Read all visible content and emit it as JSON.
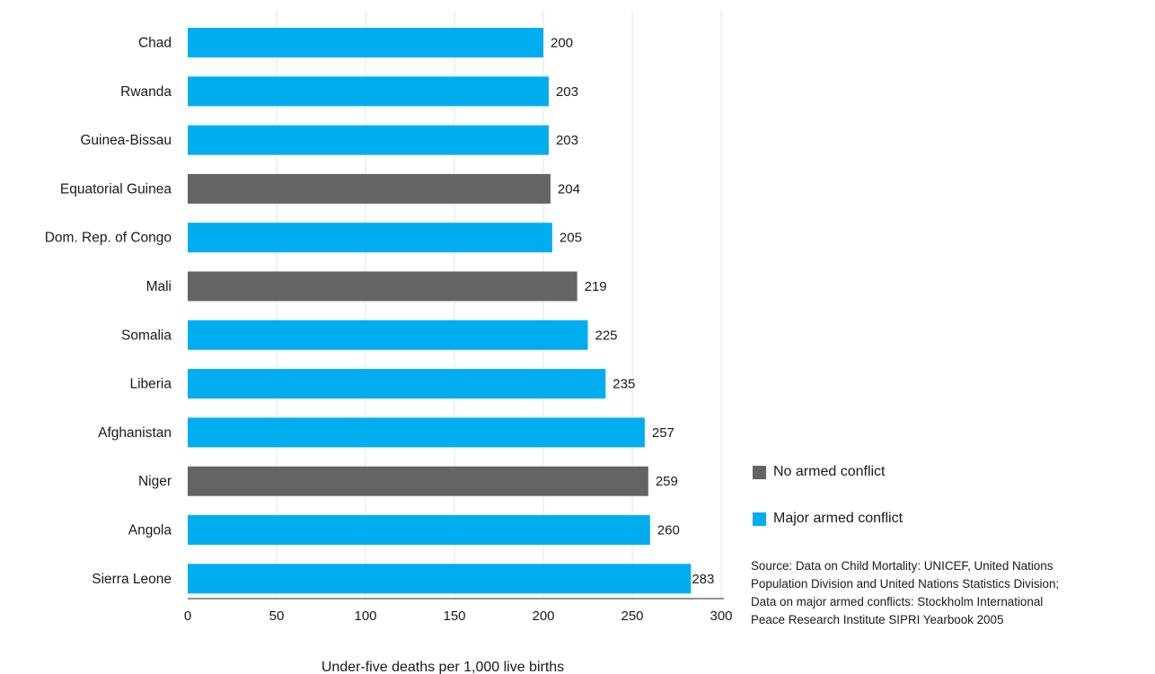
{
  "colors": {
    "major_armed_conflict": "#00aeef",
    "no_armed_conflict": "#636466",
    "grid": "#e6e6e6",
    "axis": "#555555"
  },
  "chart_data": {
    "type": "bar",
    "orientation": "horizontal",
    "categories": [
      "Chad",
      "Rwanda",
      "Guinea-Bissau",
      "Equatorial Guinea",
      "Dom. Rep. of Congo",
      "Mali",
      "Somalia",
      "Liberia",
      "Afghanistan",
      "Niger",
      "Angola",
      "Sierra Leone"
    ],
    "values": [
      200,
      203,
      203,
      204,
      205,
      219,
      225,
      235,
      257,
      259,
      260,
      283
    ],
    "groups": [
      "Major armed conflict",
      "Major armed conflict",
      "Major armed conflict",
      "No armed conflict",
      "Major armed conflict",
      "No armed conflict",
      "Major armed conflict",
      "Major armed conflict",
      "Major armed conflict",
      "No armed conflict",
      "Major armed conflict",
      "Major armed conflict"
    ],
    "data_labels": [
      "200",
      "203",
      "203",
      "204",
      "205",
      "219",
      "225",
      "235",
      "257",
      "259",
      "260",
      "283"
    ],
    "xlabel": "Under-five deaths per 1,000 live births",
    "xlim": [
      0,
      300
    ],
    "xticks": [
      "0",
      "50",
      "100",
      "150",
      "200",
      "250",
      "300"
    ],
    "grid": "vertical"
  },
  "legend": {
    "placement": "bottom-right",
    "items": [
      {
        "label": "No armed conflict",
        "color": "#636466"
      },
      {
        "label": "Major armed conflict",
        "color": "#00aeef"
      }
    ]
  },
  "source": {
    "lines": [
      "Source: Data on Child Mortality: UNICEF, United Nations",
      "Population Division and United Nations Statistics Division;",
      "Data on major armed conflicts: Stockholm International",
      "Peace Research Institute SIPRI Yearbook 2005"
    ]
  }
}
